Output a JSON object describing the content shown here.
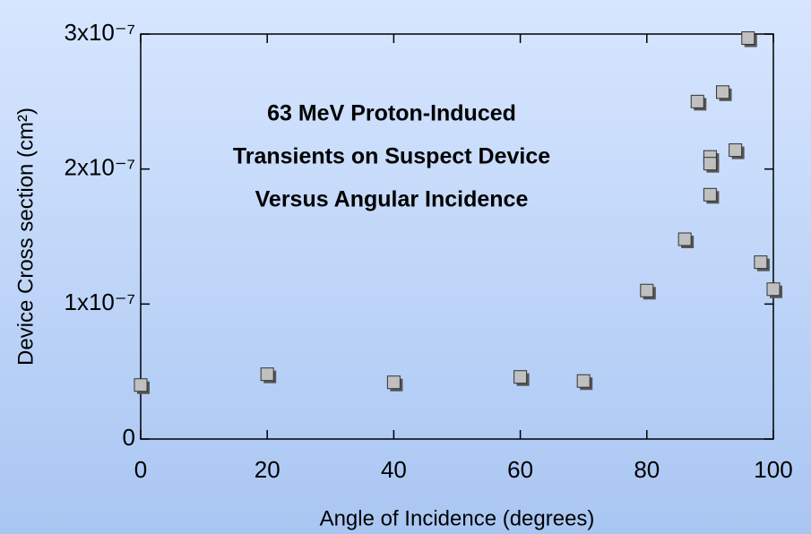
{
  "chart_data": {
    "type": "scatter",
    "title": [
      "63 MeV Proton-Induced",
      "Transients on Suspect Device",
      "Versus Angular Incidence"
    ],
    "x_label": "Angle of Incidence (degrees)",
    "y_label": "Device Cross section (cm²)",
    "xlim": [
      0,
      100
    ],
    "xticks": [
      0,
      20,
      40,
      60,
      80,
      100
    ],
    "ylim": [
      0,
      3e-07
    ],
    "yticks": [
      0,
      {
        "value": 1e-07,
        "label": "1x10⁻⁷"
      },
      {
        "value": 2e-07,
        "label": "2x10⁻⁷"
      },
      {
        "value": 3e-07,
        "label": "3x10⁻⁷"
      }
    ],
    "color": "#c0c0c0",
    "x": [
      0,
      20,
      40,
      60,
      70,
      80,
      86,
      88,
      92,
      90,
      90,
      90,
      94,
      96,
      98,
      100
    ],
    "values": [
      4e-08,
      4.8e-08,
      4.2e-08,
      4.6e-08,
      4.3e-08,
      1.1e-07,
      1.48e-07,
      2.5e-07,
      2.57e-07,
      2.09e-07,
      2.04e-07,
      1.81e-07,
      2.14e-07,
      2.97e-07,
      1.31e-07,
      1.11e-07
    ]
  }
}
